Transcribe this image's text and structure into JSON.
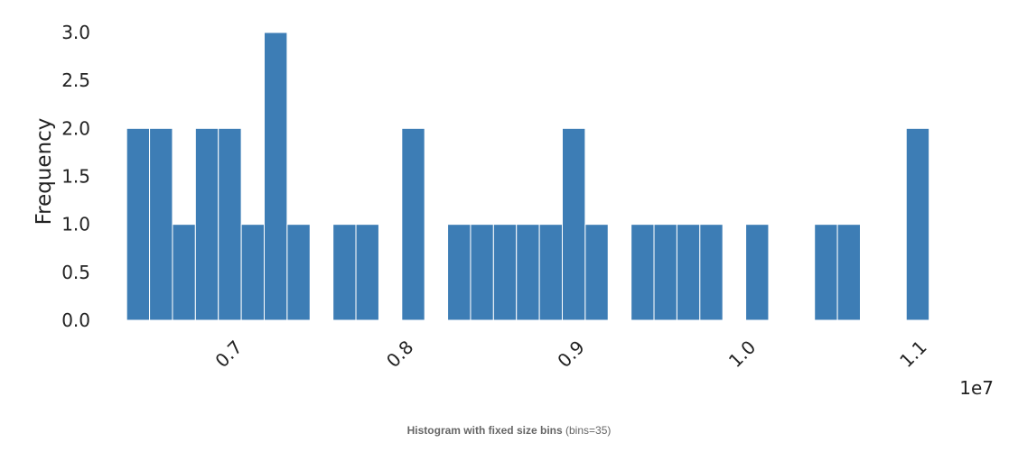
{
  "chart_data": {
    "type": "bar",
    "subtype": "histogram",
    "bin_width": 134000,
    "bin_starts": [
      6360000,
      6494000,
      6628000,
      6762000,
      6896000,
      7030000,
      7164000,
      7298000,
      7432000,
      7566000,
      7700000,
      7834000,
      7968000,
      8102000,
      8236000,
      8370000,
      8504000,
      8638000,
      8772000,
      8906000,
      9040000,
      9174000,
      9308000,
      9442000,
      9576000,
      9710000,
      9844000,
      9978000,
      10112000,
      10246000,
      10380000,
      10514000,
      10648000,
      10782000,
      10916000
    ],
    "values": [
      2,
      2,
      1,
      2,
      2,
      1,
      3,
      1,
      0,
      1,
      1,
      0,
      2,
      0,
      1,
      1,
      1,
      1,
      1,
      2,
      1,
      0,
      1,
      1,
      1,
      1,
      0,
      1,
      0,
      0,
      1,
      1,
      0,
      0,
      2
    ],
    "xlim": [
      6000000,
      11300000
    ],
    "ylim": [
      0,
      3.2
    ],
    "x_ticks": [
      7000000,
      8000000,
      9000000,
      10000000,
      11000000
    ],
    "x_tick_labels": [
      "0.7",
      "0.8",
      "0.9",
      "1.0",
      "1.1"
    ],
    "x_offset_label": "1e7",
    "y_ticks": [
      0,
      0.5,
      1,
      1.5,
      2,
      2.5,
      3
    ],
    "y_tick_labels": [
      "0.0",
      "0.5",
      "1.0",
      "1.5",
      "2.0",
      "2.5",
      "3.0"
    ],
    "xlabel": "",
    "ylabel": "Frequency",
    "bar_color": "#3d7db5",
    "bar_edge_color": "#ffffff",
    "grid": false
  },
  "caption": {
    "title": "Histogram with fixed size bins",
    "detail": "(bins=35)"
  }
}
